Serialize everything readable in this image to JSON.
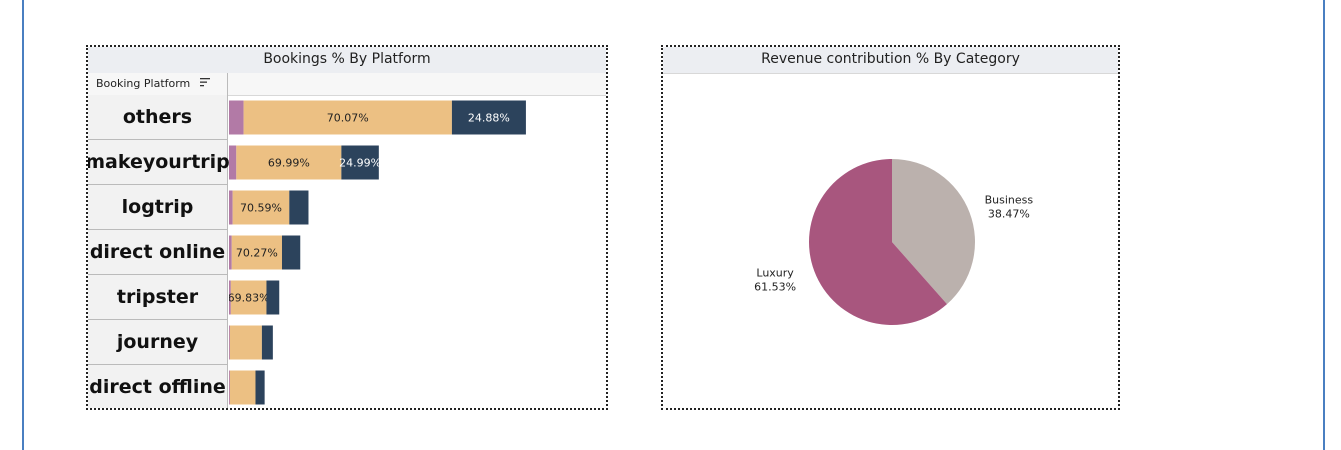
{
  "chart_data": [
    {
      "type": "bar",
      "orientation": "horizontal",
      "stacked": true,
      "title": "Bookings % By Platform",
      "column_header": "Booking Platform",
      "categories": [
        "others",
        "makeyourtrip",
        "logtrip",
        "direct online",
        "tripster",
        "journey",
        "direct offline"
      ],
      "series": [
        {
          "color": "#b27aa6",
          "values": [
            1.6,
            0.8,
            0.4,
            0.3,
            0.2,
            0.1,
            0.1
          ]
        },
        {
          "color": "#ecc083",
          "values": [
            22.8,
            11.5,
            6.2,
            5.5,
            3.9,
            3.5,
            2.8
          ],
          "labels": [
            "70.07%",
            "69.99%",
            "70.59%",
            "70.27%",
            "69.83%",
            "",
            ""
          ]
        },
        {
          "color": "#2c435c",
          "values": [
            8.1,
            4.1,
            2.1,
            2.0,
            1.4,
            1.2,
            1.0
          ],
          "labels": [
            "24.88%",
            "24.99%",
            "",
            "",
            "",
            "",
            ""
          ]
        }
      ],
      "xlim": [
        0,
        40.5
      ]
    },
    {
      "type": "pie",
      "title": "Revenue contribution % By Category",
      "slices": [
        {
          "label": "Business",
          "value": 38.47,
          "value_label": "38.47%",
          "color": "#bbb1ad"
        },
        {
          "label": "Luxury",
          "value": 61.53,
          "value_label": "61.53%",
          "color": "#a8567e"
        }
      ]
    }
  ]
}
